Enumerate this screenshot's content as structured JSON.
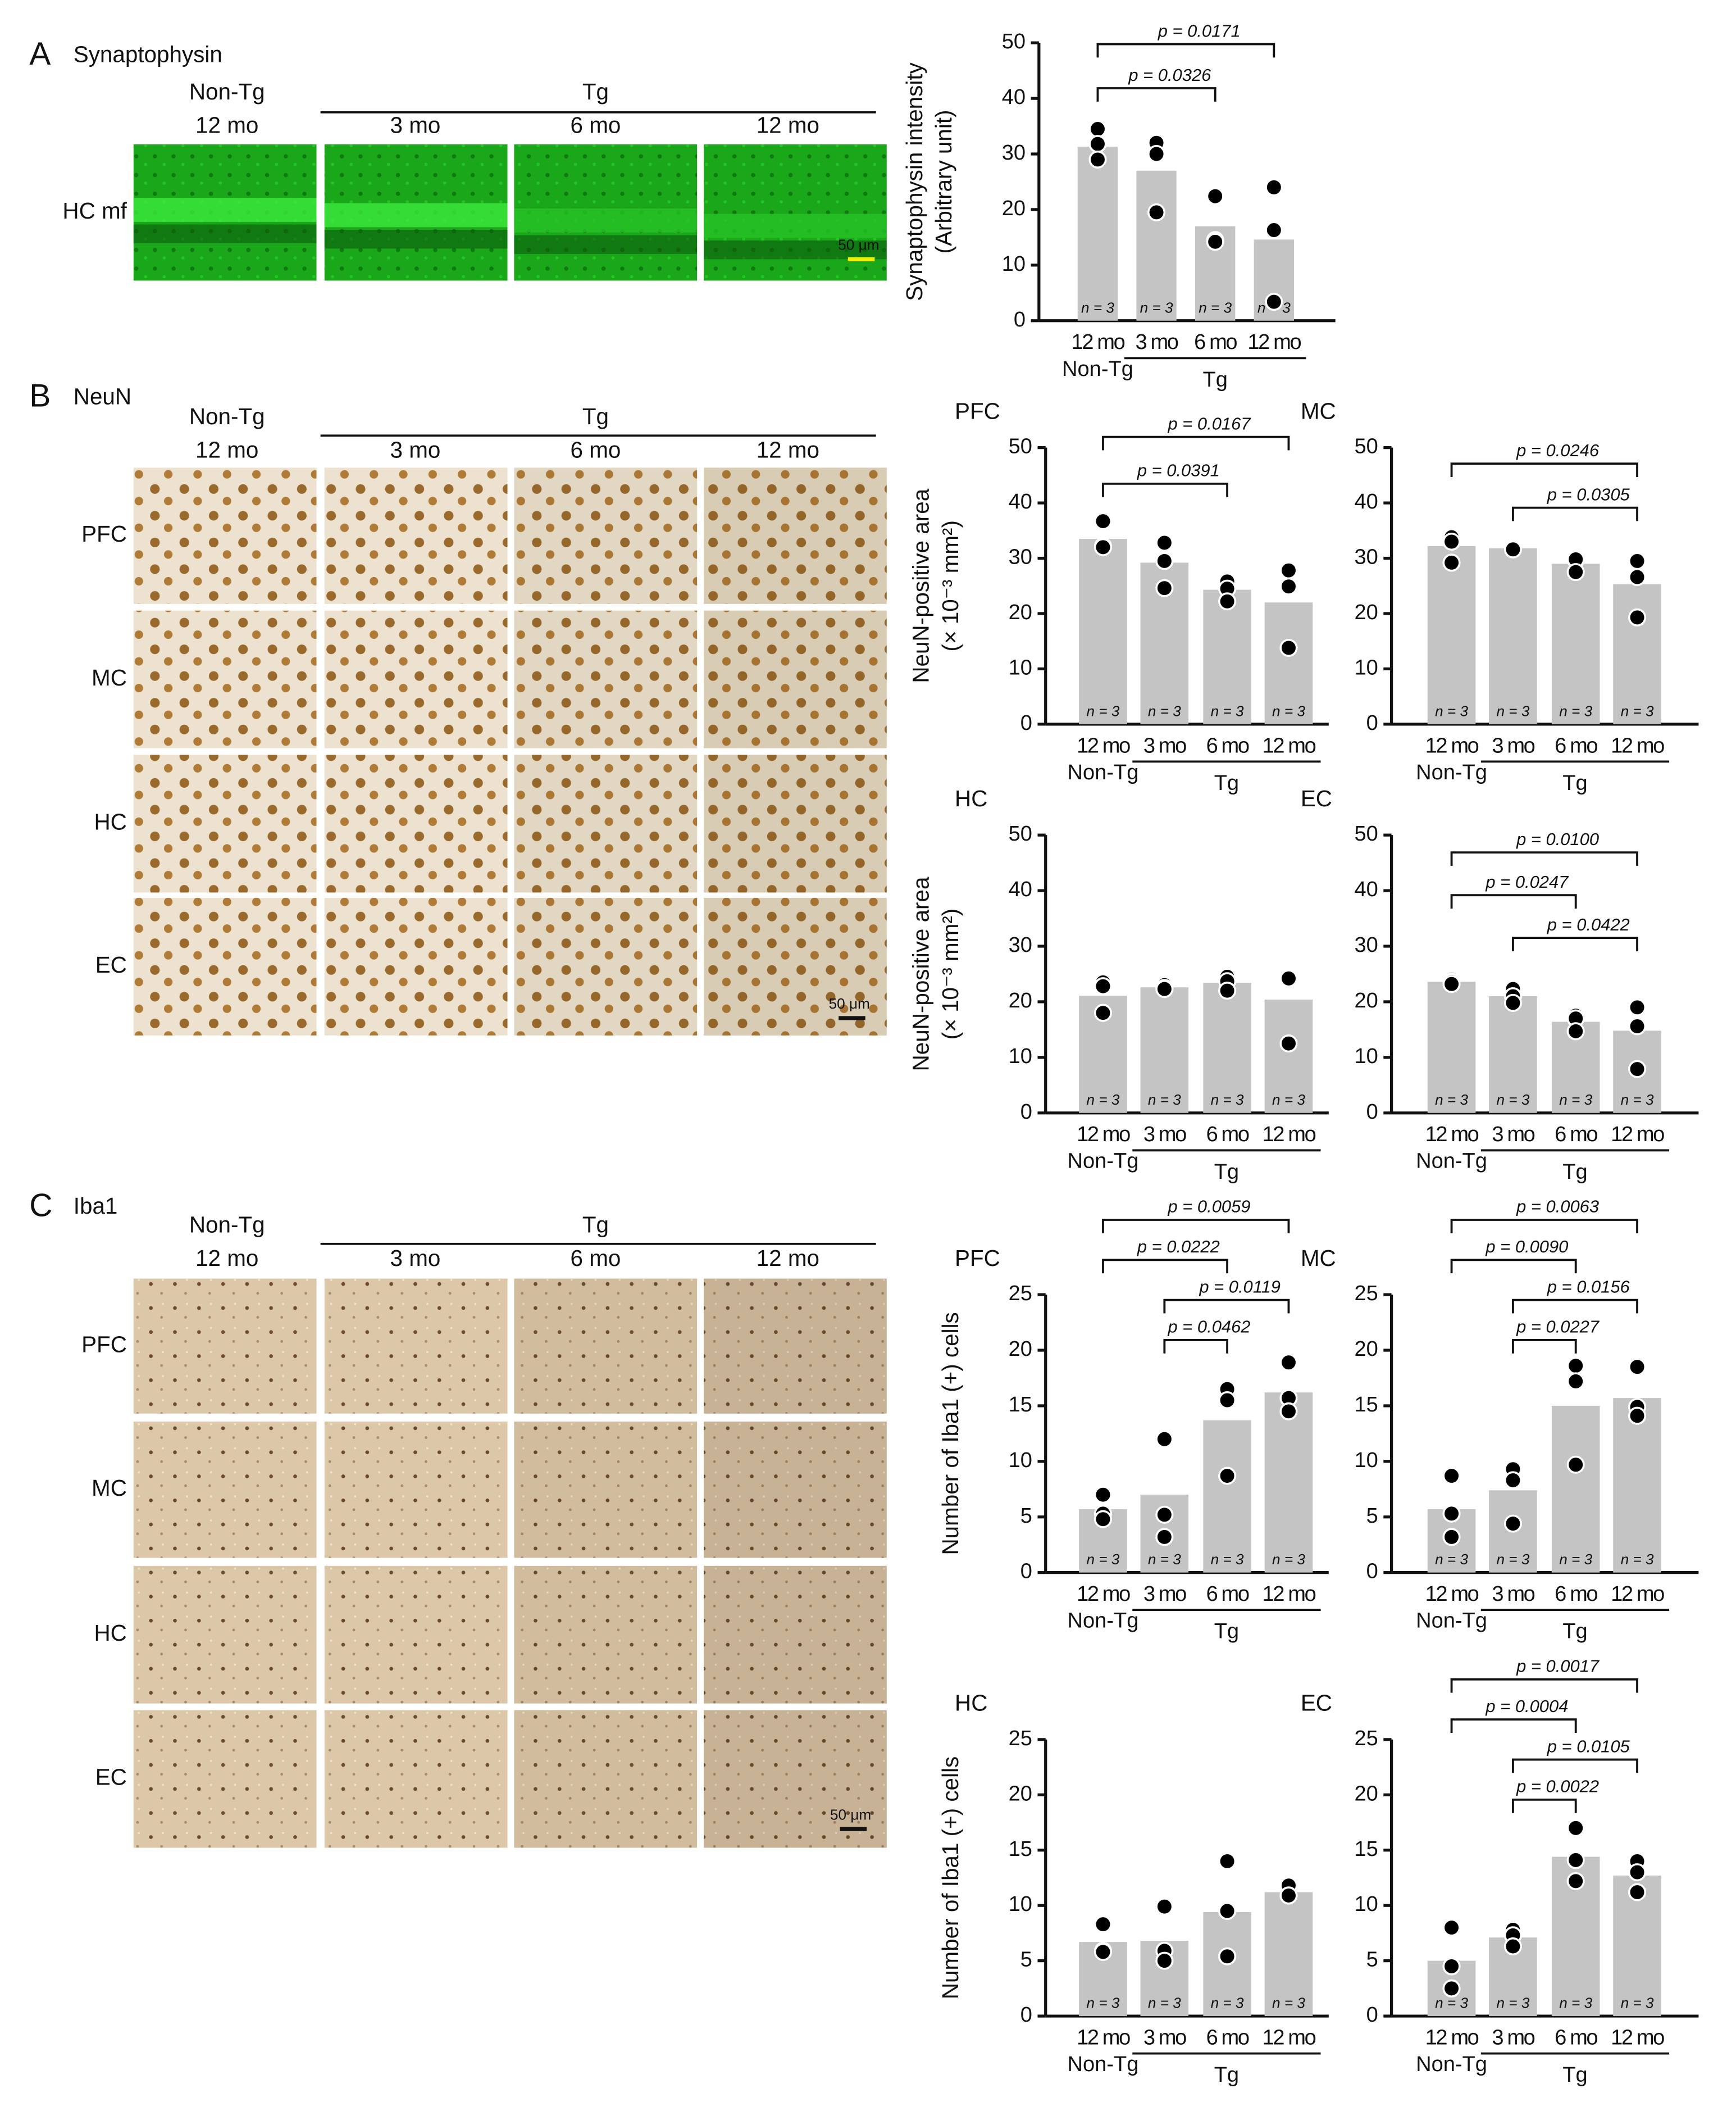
{
  "figure_panels": [
    {
      "label": "A",
      "title": "Synaptophysin",
      "group_labels": [
        "Non-Tg",
        "Tg"
      ],
      "column_labels": [
        "12 mo",
        "3 mo",
        "6 mo",
        "12 mo"
      ],
      "row_labels": [
        "HC mf"
      ],
      "scale_bar": "50 μm"
    },
    {
      "label": "B",
      "title": "NeuN",
      "group_labels": [
        "Non-Tg",
        "Tg"
      ],
      "column_labels": [
        "12 mo",
        "3 mo",
        "6 mo",
        "12 mo"
      ],
      "row_labels": [
        "PFC",
        "MC",
        "HC",
        "EC"
      ],
      "scale_bar": "50 μm"
    },
    {
      "label": "C",
      "title": "Iba1",
      "group_labels": [
        "Non-Tg",
        "Tg"
      ],
      "column_labels": [
        "12 mo",
        "3 mo",
        "6 mo",
        "12 mo"
      ],
      "row_labels": [
        "PFC",
        "MC",
        "HC",
        "EC"
      ],
      "scale_bar": "50 μm"
    }
  ],
  "chart_data": [
    {
      "type": "bar",
      "y_label": [
        "Synaptophysin intensity",
        "(Arbitrary unit)"
      ],
      "categories": [
        "12 mo",
        "3 mo",
        "6 mo",
        "12 mo"
      ],
      "group_labels": [
        "Non-Tg",
        "Tg"
      ],
      "values": [
        31.3,
        27,
        17,
        14.6
      ],
      "points": [
        [
          34.5,
          31.8,
          29
        ],
        [
          32,
          30,
          19.5
        ],
        [
          22.4,
          14.5,
          14.2
        ],
        [
          24,
          16.3,
          3.4
        ]
      ],
      "n_labels": [
        "n = 3",
        "n = 3",
        "n = 3",
        "n = 3"
      ],
      "comparisons": [
        {
          "pair": [
            0,
            3
          ],
          "label": "p = 0.0171"
        },
        {
          "pair": [
            0,
            2
          ],
          "label": "p = 0.0326"
        }
      ],
      "ylim": [
        0,
        50
      ],
      "yticks": [
        0,
        10,
        20,
        30,
        40,
        50
      ],
      "color": "#c4c4c4",
      "point_color": "#000000"
    },
    {
      "type": "bar",
      "title": "PFC",
      "y_label": [
        "NeuN-positive area",
        "(× 10⁻³ mm²)"
      ],
      "categories": [
        "12 mo",
        "3 mo",
        "6 mo",
        "12 mo"
      ],
      "group_labels": [
        "Non-Tg",
        "Tg"
      ],
      "values": [
        33.5,
        29.2,
        24.3,
        22
      ],
      "points": [
        [
          36.7,
          32.2,
          32
        ],
        [
          32.8,
          29.5,
          24.6
        ],
        [
          25.8,
          24.5,
          22.2
        ],
        [
          27.8,
          24.9,
          13.8
        ]
      ],
      "n_labels": [
        "n = 3",
        "n = 3",
        "n = 3",
        "n = 3"
      ],
      "comparisons": [
        {
          "pair": [
            0,
            3
          ],
          "label": "p = 0.0167"
        },
        {
          "pair": [
            0,
            2
          ],
          "label": "p = 0.0391"
        }
      ],
      "ylim": [
        0,
        50
      ],
      "yticks": [
        0,
        10,
        20,
        30,
        40,
        50
      ],
      "color": "#c4c4c4",
      "point_color": "#000000"
    },
    {
      "type": "bar",
      "title": "MC",
      "categories": [
        "12 mo",
        "3 mo",
        "6 mo",
        "12 mo"
      ],
      "group_labels": [
        "Non-Tg",
        "Tg"
      ],
      "values": [
        32.2,
        31.8,
        29,
        25.3
      ],
      "points": [
        [
          33.8,
          33,
          29.2
        ],
        [
          32,
          31.8,
          31.6
        ],
        [
          29.7,
          29.8,
          27.5
        ],
        [
          29.5,
          26.6,
          19.3
        ]
      ],
      "n_labels": [
        "n = 3",
        "n = 3",
        "n = 3",
        "n = 3"
      ],
      "comparisons": [
        {
          "pair": [
            0,
            3
          ],
          "label": "p = 0.0246"
        },
        {
          "pair": [
            1,
            3
          ],
          "label": "p = 0.0305"
        }
      ],
      "ylim": [
        0,
        50
      ],
      "yticks": [
        0,
        10,
        20,
        30,
        40,
        50
      ],
      "color": "#c4c4c4",
      "point_color": "#000000"
    },
    {
      "type": "bar",
      "title": "HC",
      "y_label": [
        "NeuN-positive area",
        "(× 10⁻³ mm²)"
      ],
      "categories": [
        "12 mo",
        "3 mo",
        "6 mo",
        "12 mo"
      ],
      "group_labels": [
        "Non-Tg",
        "Tg"
      ],
      "values": [
        21.1,
        22.6,
        23.4,
        20.4
      ],
      "points": [
        [
          23.5,
          22.8,
          18
        ],
        [
          23,
          22.5,
          22.3
        ],
        [
          24.5,
          23.7,
          22
        ],
        [
          24.5,
          24.2,
          12.5
        ]
      ],
      "n_labels": [
        "n = 3",
        "n = 3",
        "n = 3",
        "n = 3"
      ],
      "comparisons": [],
      "ylim": [
        0,
        50
      ],
      "yticks": [
        0,
        10,
        20,
        30,
        40,
        50
      ],
      "color": "#c4c4c4",
      "point_color": "#000000"
    },
    {
      "type": "bar",
      "title": "EC",
      "categories": [
        "12 mo",
        "3 mo",
        "6 mo",
        "12 mo"
      ],
      "group_labels": [
        "Non-Tg",
        "Tg"
      ],
      "values": [
        23.6,
        21,
        16.4,
        14.8
      ],
      "points": [
        [
          24,
          23.6,
          23.2
        ],
        [
          22.3,
          21,
          19.8
        ],
        [
          17.5,
          17,
          14.7
        ],
        [
          19,
          15.6,
          7.9
        ]
      ],
      "n_labels": [
        "n = 3",
        "n = 3",
        "n = 3",
        "n = 3"
      ],
      "comparisons": [
        {
          "pair": [
            0,
            3
          ],
          "label": "p = 0.0100"
        },
        {
          "pair": [
            0,
            2
          ],
          "label": "p = 0.0247"
        },
        {
          "pair": [
            1,
            3
          ],
          "label": "p = 0.0422"
        }
      ],
      "ylim": [
        0,
        50
      ],
      "yticks": [
        0,
        10,
        20,
        30,
        40,
        50
      ],
      "color": "#c4c4c4",
      "point_color": "#000000"
    },
    {
      "type": "bar",
      "title": "PFC",
      "y_label": [
        "Number of Iba1 (+) cells"
      ],
      "categories": [
        "12 mo",
        "3 mo",
        "6 mo",
        "12 mo"
      ],
      "group_labels": [
        "Non-Tg",
        "Tg"
      ],
      "values": [
        5.7,
        7,
        13.7,
        16.2
      ],
      "points": [
        [
          7,
          5.3,
          4.8
        ],
        [
          12,
          5.2,
          3.2
        ],
        [
          16.5,
          15.5,
          8.7
        ],
        [
          18.9,
          15.7,
          14.5
        ]
      ],
      "n_labels": [
        "n = 3",
        "n = 3",
        "n = 3",
        "n = 3"
      ],
      "comparisons": [
        {
          "pair": [
            0,
            3
          ],
          "label": "p = 0.0059"
        },
        {
          "pair": [
            0,
            2
          ],
          "label": "p = 0.0222"
        },
        {
          "pair": [
            1,
            3
          ],
          "label": "p = 0.0119"
        },
        {
          "pair": [
            1,
            2
          ],
          "label": "p = 0.0462"
        }
      ],
      "ylim": [
        0,
        25
      ],
      "yticks": [
        0,
        5,
        10,
        15,
        20,
        25
      ],
      "color": "#c4c4c4",
      "point_color": "#000000"
    },
    {
      "type": "bar",
      "title": "MC",
      "categories": [
        "12 mo",
        "3 mo",
        "6 mo",
        "12 mo"
      ],
      "group_labels": [
        "Non-Tg",
        "Tg"
      ],
      "values": [
        5.7,
        7.4,
        15,
        15.7
      ],
      "points": [
        [
          8.7,
          5.3,
          3.2
        ],
        [
          9.3,
          8.3,
          4.4
        ],
        [
          18.6,
          17.2,
          9.7
        ],
        [
          18.5,
          14.9,
          14.1
        ]
      ],
      "n_labels": [
        "n = 3",
        "n = 3",
        "n = 3",
        "n = 3"
      ],
      "comparisons": [
        {
          "pair": [
            0,
            3
          ],
          "label": "p = 0.0063"
        },
        {
          "pair": [
            0,
            2
          ],
          "label": "p = 0.0090"
        },
        {
          "pair": [
            1,
            3
          ],
          "label": "p = 0.0156"
        },
        {
          "pair": [
            1,
            2
          ],
          "label": "p = 0.0227"
        }
      ],
      "ylim": [
        0,
        25
      ],
      "yticks": [
        0,
        5,
        10,
        15,
        20,
        25
      ],
      "color": "#c4c4c4",
      "point_color": "#000000"
    },
    {
      "type": "bar",
      "title": "HC",
      "y_label": [
        "Number of Iba1 (+) cells"
      ],
      "categories": [
        "12 mo",
        "3 mo",
        "6 mo",
        "12 mo"
      ],
      "group_labels": [
        "Non-Tg",
        "Tg"
      ],
      "values": [
        6.7,
        6.8,
        9.4,
        11.2
      ],
      "points": [
        [
          8.3,
          5.9,
          5.8
        ],
        [
          9.9,
          5.9,
          5
        ],
        [
          14,
          9.5,
          5.4
        ],
        [
          11.8,
          10.9,
          10.9
        ]
      ],
      "n_labels": [
        "n = 3",
        "n = 3",
        "n = 3",
        "n = 3"
      ],
      "comparisons": [],
      "ylim": [
        0,
        25
      ],
      "yticks": [
        0,
        5,
        10,
        15,
        20,
        25
      ],
      "color": "#c4c4c4",
      "point_color": "#000000"
    },
    {
      "type": "bar",
      "title": "EC",
      "categories": [
        "12 mo",
        "3 mo",
        "6 mo",
        "12 mo"
      ],
      "group_labels": [
        "Non-Tg",
        "Tg"
      ],
      "values": [
        5,
        7.1,
        14.4,
        12.7
      ],
      "points": [
        [
          8,
          4.5,
          2.5
        ],
        [
          7.8,
          7.3,
          6.3
        ],
        [
          17,
          14.1,
          12.2
        ],
        [
          14,
          13,
          11.2
        ]
      ],
      "n_labels": [
        "n = 3",
        "n = 3",
        "n = 3",
        "n = 3"
      ],
      "comparisons": [
        {
          "pair": [
            0,
            3
          ],
          "label": "p = 0.0017"
        },
        {
          "pair": [
            0,
            2
          ],
          "label": "p = 0.0004"
        },
        {
          "pair": [
            1,
            3
          ],
          "label": "p = 0.0105"
        },
        {
          "pair": [
            1,
            2
          ],
          "label": "p = 0.0022"
        }
      ],
      "ylim": [
        0,
        25
      ],
      "yticks": [
        0,
        5,
        10,
        15,
        20,
        25
      ],
      "color": "#c4c4c4",
      "point_color": "#000000"
    }
  ]
}
